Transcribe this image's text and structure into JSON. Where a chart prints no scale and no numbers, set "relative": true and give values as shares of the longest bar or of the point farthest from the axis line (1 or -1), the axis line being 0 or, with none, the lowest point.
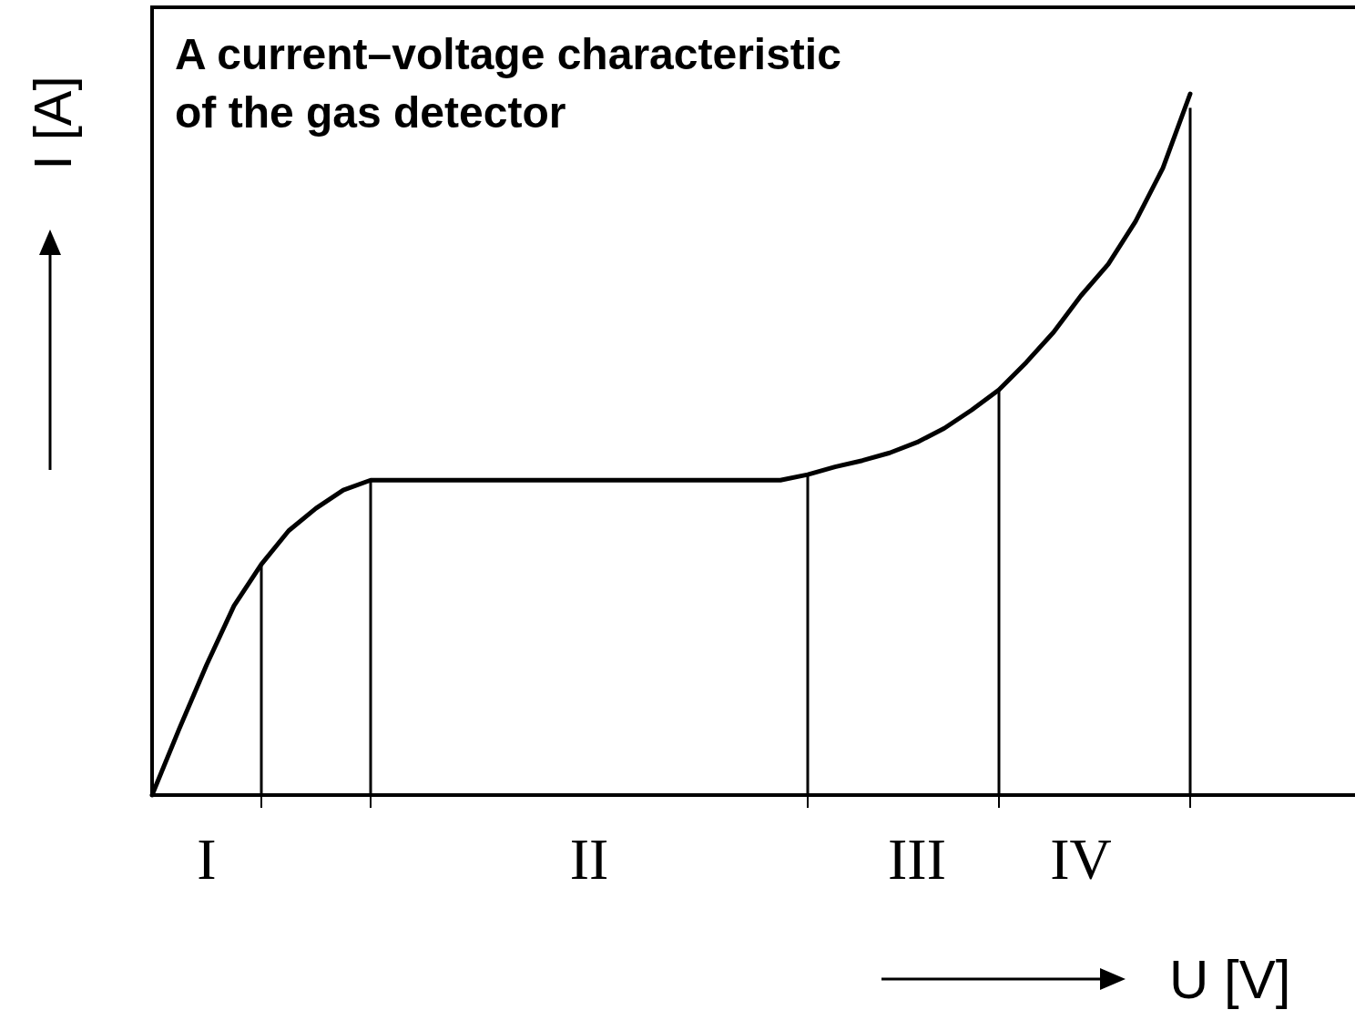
{
  "chart_data": {
    "type": "line",
    "title": "A current–voltage characteristic\nof the gas detector",
    "xlabel": "U [V]",
    "ylabel": "I [A]",
    "relative": true,
    "categories": [
      null,
      null,
      "I",
      null,
      null,
      null,
      null,
      null,
      null,
      null,
      null,
      null,
      null,
      null,
      null,
      null,
      "II",
      null,
      null,
      null,
      null,
      null,
      null,
      null,
      null,
      null,
      null,
      null,
      "III",
      null,
      null,
      null,
      null,
      null,
      "IV",
      null,
      null,
      null,
      null,
      null,
      null,
      null,
      null,
      null,
      null
    ],
    "series": [
      {
        "color": "#000000",
        "values": [
          0,
          0.095,
          0.186,
          0.27,
          0.329,
          0.377,
          0.409,
          0.435,
          0.449,
          0.449,
          0.449,
          0.449,
          0.449,
          0.449,
          0.449,
          0.449,
          0.449,
          0.449,
          0.449,
          0.449,
          0.449,
          0.449,
          0.449,
          0.449,
          0.457,
          0.468,
          0.477,
          0.488,
          0.503,
          0.523,
          0.549,
          0.578,
          0.617,
          0.66,
          0.712,
          0.757,
          0.818,
          0.894,
          1,
          null,
          null,
          null,
          null,
          null,
          null
        ]
      },
      {
        "type": "bar",
        "color": "#000000",
        "values": [
          null,
          null,
          null,
          null,
          0.329,
          null,
          null,
          null,
          0.449,
          null,
          null,
          null,
          null,
          null,
          null,
          null,
          null,
          null,
          null,
          null,
          null,
          null,
          null,
          null,
          0.457,
          null,
          null,
          null,
          null,
          null,
          null,
          0.578,
          null,
          null,
          null,
          null,
          null,
          null,
          0.98,
          null,
          null,
          null,
          null,
          null,
          null
        ]
      }
    ]
  }
}
